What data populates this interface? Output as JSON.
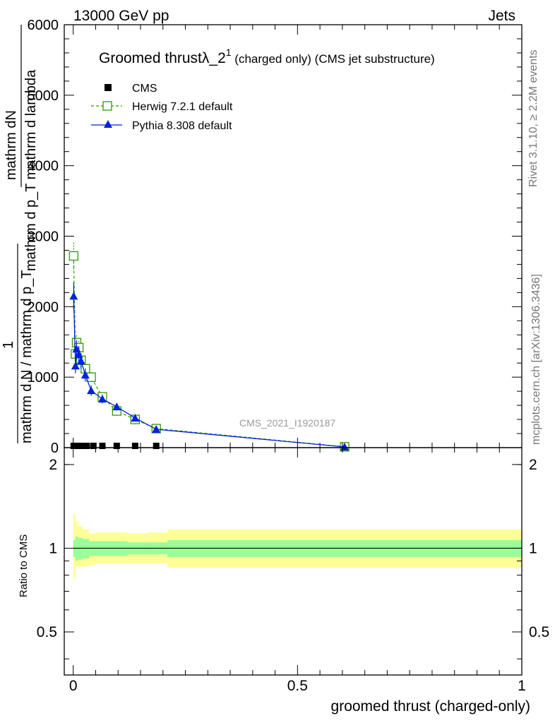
{
  "header": {
    "energy_label": "13000 GeV pp",
    "process_label": "Jets"
  },
  "side_text": {
    "rivet": "Rivet 3.1.10, ≥ 2.2M events",
    "mcplots": "mcplots.cern.ch [arXiv:1306.3436]"
  },
  "watermark": "CMS_2021_I1920187",
  "title": {
    "main": "Groomed thrustλ_2",
    "superscript": "1",
    "suffix": " (charged only) (CMS jet substructure)"
  },
  "legend": {
    "cms": "CMS",
    "herwig": "Herwig 7.2.1 default",
    "pythia": "Pythia 8.308 default"
  },
  "colors": {
    "cms": "#000000",
    "herwig": "#339900",
    "pythia": "#0022dd",
    "band_inner": "#99ff99",
    "band_outer": "#ffff99"
  },
  "main_ylabel": {
    "numerator": "mathrm dN",
    "denominator": "mathrm d p_T mathrm d lambda",
    "factor_num": "1",
    "factor_den": "mathrm d N / mathrm d p_T"
  },
  "main_yticks": [
    "0",
    "1000",
    "2000",
    "3000",
    "4000",
    "5000",
    "6000"
  ],
  "ratio_ylabel": "Ratio to CMS",
  "ratio_yticks": [
    "0.5",
    "1",
    "2"
  ],
  "xticks": [
    "0",
    "0.5",
    "1"
  ],
  "xlabel": "groomed thrust (charged-only)",
  "chart_data": {
    "type": "line",
    "xlim": [
      -0.02,
      1.0
    ],
    "ylim": [
      0,
      6000
    ],
    "ratio_ylim": [
      0.35,
      2.3
    ],
    "grid": false,
    "legend_position": "top-left",
    "series": [
      {
        "name": "CMS",
        "marker": "filled-square",
        "points": [
          [
            0.001,
            10
          ],
          [
            0.005,
            10
          ],
          [
            0.0095,
            10
          ],
          [
            0.0145,
            10
          ],
          [
            0.02,
            10
          ],
          [
            0.03,
            10
          ],
          [
            0.045,
            10
          ],
          [
            0.065,
            10
          ],
          [
            0.097,
            10
          ],
          [
            0.138,
            10
          ],
          [
            0.185,
            10
          ],
          [
            0.605,
            10
          ]
        ]
      },
      {
        "name": "Herwig 7.2.1 default",
        "marker": "open-square",
        "points": [
          [
            0.001,
            2720
          ],
          [
            0.005,
            1330
          ],
          [
            0.0075,
            1490
          ],
          [
            0.0125,
            1420
          ],
          [
            0.0175,
            1240
          ],
          [
            0.027,
            1120
          ],
          [
            0.04,
            1000
          ],
          [
            0.065,
            720
          ],
          [
            0.097,
            520
          ],
          [
            0.138,
            400
          ],
          [
            0.185,
            270
          ],
          [
            0.605,
            12
          ]
        ]
      },
      {
        "name": "Pythia 8.308 default",
        "marker": "filled-triangle",
        "points": [
          [
            0.001,
            2150
          ],
          [
            0.005,
            1160
          ],
          [
            0.0075,
            1400
          ],
          [
            0.0125,
            1320
          ],
          [
            0.0175,
            1230
          ],
          [
            0.027,
            1030
          ],
          [
            0.04,
            810
          ],
          [
            0.065,
            690
          ],
          [
            0.097,
            580
          ],
          [
            0.138,
            420
          ],
          [
            0.185,
            260
          ],
          [
            0.605,
            10
          ]
        ]
      }
    ],
    "ratio_bands": {
      "reference": 1.0,
      "bins": [
        {
          "x": [
            0.0,
            0.005
          ],
          "inner": [
            0.93,
            1.07
          ],
          "outer": [
            0.78,
            1.32
          ]
        },
        {
          "x": [
            0.005,
            0.01
          ],
          "inner": [
            0.9,
            1.1
          ],
          "outer": [
            0.86,
            1.25
          ]
        },
        {
          "x": [
            0.01,
            0.02
          ],
          "inner": [
            0.91,
            1.09
          ],
          "outer": [
            0.86,
            1.2
          ]
        },
        {
          "x": [
            0.02,
            0.035
          ],
          "inner": [
            0.92,
            1.08
          ],
          "outer": [
            0.86,
            1.17
          ]
        },
        {
          "x": [
            0.035,
            0.05
          ],
          "inner": [
            0.94,
            1.06
          ],
          "outer": [
            0.87,
            1.13
          ]
        },
        {
          "x": [
            0.05,
            0.12
          ],
          "inner": [
            0.94,
            1.06
          ],
          "outer": [
            0.88,
            1.14
          ]
        },
        {
          "x": [
            0.12,
            0.165
          ],
          "inner": [
            0.95,
            1.05
          ],
          "outer": [
            0.88,
            1.13
          ]
        },
        {
          "x": [
            0.165,
            0.21
          ],
          "inner": [
            0.95,
            1.05
          ],
          "outer": [
            0.88,
            1.14
          ]
        },
        {
          "x": [
            0.21,
            1.0
          ],
          "inner": [
            0.93,
            1.07
          ],
          "outer": [
            0.85,
            1.17
          ]
        }
      ]
    }
  }
}
